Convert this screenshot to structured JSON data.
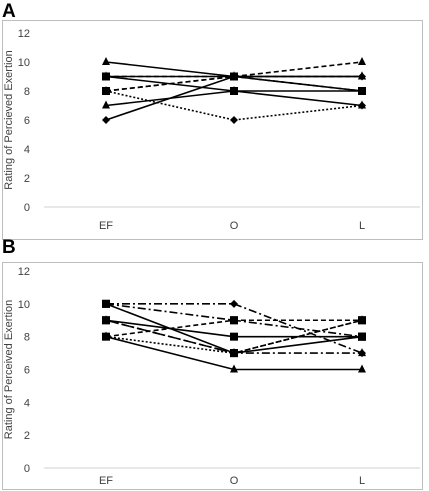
{
  "chart_data": [
    {
      "panel_label": "A",
      "type": "line",
      "ylabel": "Rating of Percieved Exertion",
      "xlabel": "",
      "categories": [
        "EF",
        "O",
        "L"
      ],
      "ylim": [
        0,
        12
      ],
      "yticks": [
        0,
        2,
        4,
        6,
        8,
        10,
        12
      ],
      "grid": false,
      "legend": "none",
      "series": [
        {
          "values": [
            10,
            9,
            9
          ],
          "marker": "triangle",
          "dash": "solid"
        },
        {
          "values": [
            9,
            9,
            10
          ],
          "marker": "triangle",
          "dash": "dashed"
        },
        {
          "values": [
            9,
            9,
            8
          ],
          "marker": "square",
          "dash": "solid"
        },
        {
          "values": [
            9,
            8,
            8
          ],
          "marker": "square",
          "dash": "solid"
        },
        {
          "values": [
            8,
            9,
            8
          ],
          "marker": "square",
          "dash": "dashed"
        },
        {
          "values": [
            8,
            9,
            9
          ],
          "marker": "triangle",
          "dash": "dashed"
        },
        {
          "values": [
            7,
            8,
            7
          ],
          "marker": "triangle",
          "dash": "solid"
        },
        {
          "values": [
            8,
            6,
            7
          ],
          "marker": "diamond",
          "dash": "dotted"
        },
        {
          "values": [
            6,
            9,
            9
          ],
          "marker": "diamond",
          "dash": "solid"
        }
      ]
    },
    {
      "panel_label": "B",
      "type": "line",
      "ylabel": "Rating of Perceived Exertion",
      "xlabel": "",
      "categories": [
        "EF",
        "O",
        "L"
      ],
      "ylim": [
        0,
        12
      ],
      "yticks": [
        0,
        2,
        4,
        6,
        8,
        10,
        12
      ],
      "grid": false,
      "legend": "none",
      "series": [
        {
          "values": [
            10,
            10,
            7
          ],
          "marker": "diamond",
          "dash": "dashdot"
        },
        {
          "values": [
            10,
            9,
            8
          ],
          "marker": "square",
          "dash": "dashdot"
        },
        {
          "values": [
            10,
            7,
            8
          ],
          "marker": "square",
          "dash": "solid"
        },
        {
          "values": [
            9,
            8,
            8
          ],
          "marker": "square",
          "dash": "solid"
        },
        {
          "values": [
            9,
            7,
            9
          ],
          "marker": "square",
          "dash": "dashed"
        },
        {
          "values": [
            9,
            7,
            7
          ],
          "marker": "triangle",
          "dash": "dashdot"
        },
        {
          "values": [
            8,
            7,
            9
          ],
          "marker": "triangle",
          "dash": "dotted"
        },
        {
          "values": [
            8,
            9,
            9
          ],
          "marker": "square",
          "dash": "dashed"
        },
        {
          "values": [
            8,
            6,
            6
          ],
          "marker": "triangle",
          "dash": "solid"
        }
      ]
    }
  ]
}
